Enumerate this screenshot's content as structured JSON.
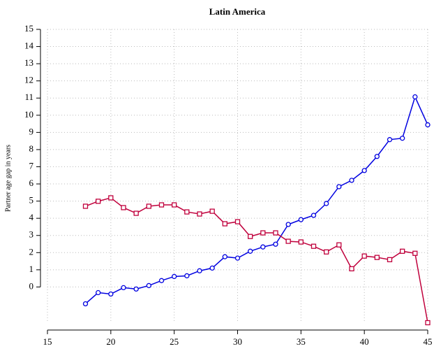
{
  "chart_data": {
    "type": "line",
    "title": "Latin America",
    "y_label": "Partner age gap in years",
    "x": [
      18,
      19,
      20,
      21,
      22,
      23,
      24,
      25,
      26,
      27,
      28,
      29,
      30,
      31,
      32,
      33,
      34,
      35,
      36,
      37,
      38,
      39,
      40,
      41,
      42,
      43,
      44,
      45
    ],
    "series": [
      {
        "color": "#0000e0",
        "marker": "circle",
        "values": [
          -0.98,
          -0.33,
          -0.41,
          -0.04,
          -0.12,
          0.08,
          0.37,
          0.61,
          0.65,
          0.94,
          1.1,
          1.76,
          1.68,
          2.08,
          2.33,
          2.49,
          3.64,
          3.92,
          4.17,
          4.86,
          5.84,
          6.21,
          6.78,
          7.6,
          8.58,
          8.66,
          11.07,
          9.44
        ]
      },
      {
        "color": "#c0003c",
        "marker": "square",
        "values": [
          4.7,
          4.99,
          5.19,
          4.62,
          4.29,
          4.7,
          4.78,
          4.78,
          4.37,
          4.25,
          4.41,
          3.68,
          3.8,
          2.94,
          3.15,
          3.15,
          2.66,
          2.62,
          2.37,
          2.04,
          2.45,
          1.06,
          1.8,
          1.72,
          1.59,
          2.08,
          1.96,
          -2.08
        ]
      }
    ],
    "xlim": [
      15,
      45
    ],
    "ylim": [
      -2.1,
      15
    ],
    "xticks": [
      15,
      20,
      25,
      30,
      35,
      40,
      45
    ],
    "yticks": [
      0,
      1,
      2,
      3,
      4,
      5,
      6,
      7,
      8,
      9,
      10,
      11,
      12,
      13,
      14,
      15
    ],
    "grid": true
  }
}
